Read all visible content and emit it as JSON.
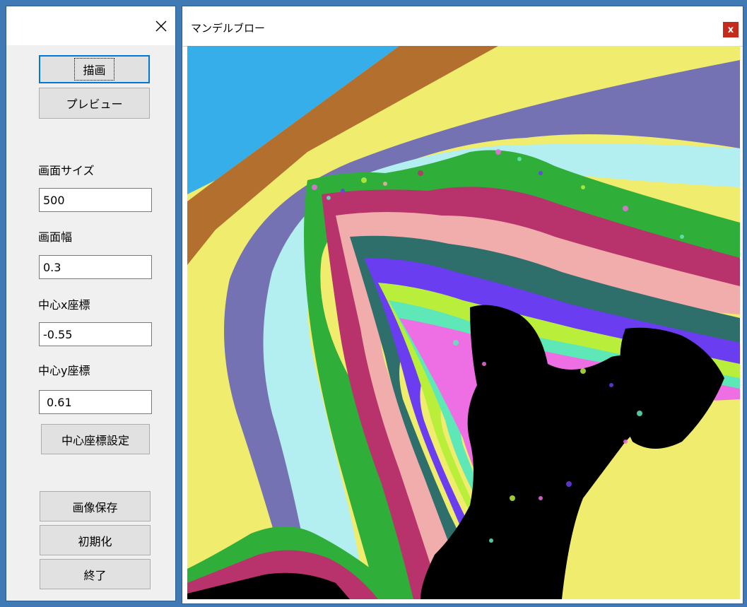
{
  "left_panel": {
    "buttons": {
      "draw": "描画",
      "preview": "プレビュー",
      "set_center": "中心座標設定",
      "save_image": "画像保存",
      "reset": "初期化",
      "exit": "終了"
    },
    "fields": {
      "screen_size_label": "画面サイズ",
      "screen_size_value": "500",
      "screen_width_label": "画面幅",
      "screen_width_value": "0.3",
      "center_x_label": "中心x座標",
      "center_x_value": "-0.55",
      "center_y_label": "中心y座標",
      "center_y_value": "0.61"
    }
  },
  "main_window": {
    "title": "マンデルブロー",
    "close_label": "x"
  },
  "colors": {
    "accent": "#0078d7",
    "desktop": "#3f7ab5",
    "close_button": "#c42b1c"
  },
  "icons": {
    "left_close": "close-icon",
    "main_close": "close-icon"
  }
}
